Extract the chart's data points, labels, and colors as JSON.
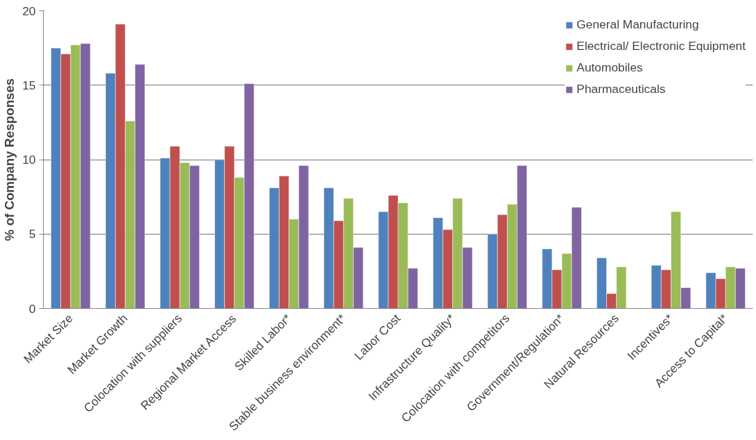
{
  "chart_data": {
    "type": "bar",
    "ylabel": "% of Company Responses",
    "categories": [
      "Market Size",
      "Market Growth",
      "Colocation with suppliers",
      "Regional Market Access",
      "Skilled Labor*",
      "Stable business environment*",
      "Labor Cost",
      "Infrastructure Quality*",
      "Colocation with competitors",
      "Government/Regulation*",
      "Natural Resources",
      "Incentives*",
      "Access to Capital*"
    ],
    "series": [
      {
        "name": "General Manufacturing",
        "color": "#4f81bd",
        "values": [
          17.5,
          15.8,
          10.1,
          10.0,
          8.1,
          8.1,
          6.5,
          6.1,
          5.0,
          4.0,
          3.4,
          2.9,
          2.4
        ]
      },
      {
        "name": "Electrical/ Electronic Equipment",
        "color": "#c0504d",
        "values": [
          17.1,
          19.1,
          10.9,
          10.9,
          8.9,
          5.9,
          7.6,
          5.3,
          6.3,
          2.6,
          1.0,
          2.6,
          2.0
        ]
      },
      {
        "name": "Automobiles",
        "color": "#9bbb59",
        "values": [
          17.7,
          12.6,
          9.8,
          8.8,
          6.0,
          7.4,
          7.1,
          7.4,
          7.0,
          3.7,
          2.8,
          6.5,
          2.8
        ]
      },
      {
        "name": "Pharmaceuticals",
        "color": "#8064a2",
        "values": [
          17.8,
          16.4,
          9.6,
          15.1,
          9.6,
          4.1,
          2.7,
          4.1,
          9.6,
          6.8,
          null,
          1.4,
          2.7
        ]
      }
    ],
    "ylim": [
      0,
      20
    ],
    "yticks": [
      0,
      5,
      10,
      15,
      20
    ],
    "grid": "y",
    "legend": "top right"
  }
}
